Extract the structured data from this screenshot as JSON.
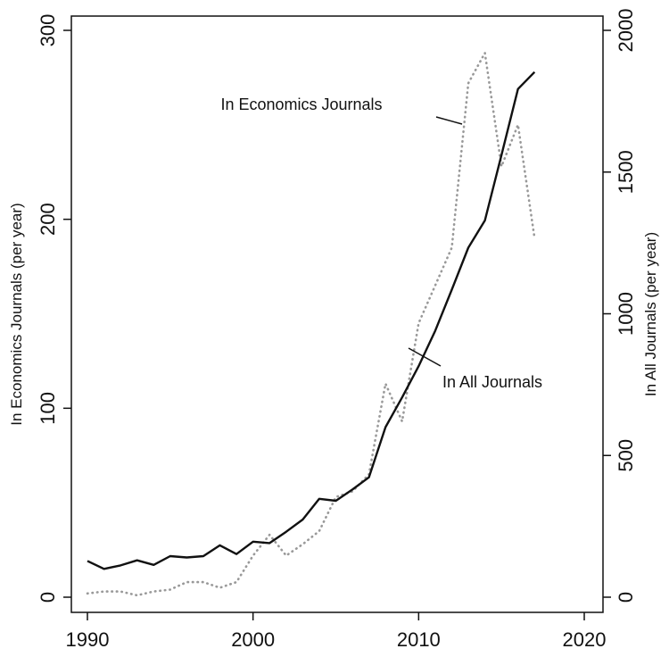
{
  "chart_data": {
    "type": "line",
    "x_axis": {
      "range": [
        1990,
        2020
      ],
      "ticks": [
        1990,
        2000,
        2010,
        2020
      ],
      "tick_labels": [
        "1990",
        "2000",
        "2010",
        "2020"
      ]
    },
    "y_left": {
      "label": "In Economics Journals (per year)",
      "range": [
        0,
        300
      ],
      "ticks": [
        0,
        100,
        200,
        300
      ],
      "tick_labels": [
        "0",
        "100",
        "200",
        "300"
      ]
    },
    "y_right": {
      "label": "In All Journals (per year)",
      "range": [
        0,
        2000
      ],
      "ticks": [
        0,
        500,
        1000,
        1500,
        2000
      ],
      "tick_labels": [
        "0",
        "500",
        "1000",
        "1500",
        "2000"
      ]
    },
    "series": [
      {
        "name": "In Economics Journals",
        "axis": "left",
        "style": "dotted",
        "color": "#999999",
        "x": [
          1990,
          1991,
          1992,
          1993,
          1994,
          1995,
          1996,
          1997,
          1998,
          1999,
          2000,
          2001,
          2002,
          2003,
          2004,
          2005,
          2006,
          2007,
          2008,
          2009,
          2010,
          2011,
          2012,
          2013,
          2014,
          2015,
          2016,
          2017
        ],
        "y": [
          2,
          3,
          3,
          1,
          3,
          4,
          8,
          8,
          5,
          8,
          22,
          33,
          22,
          28,
          35,
          53,
          56,
          65,
          113,
          93,
          145,
          165,
          185,
          272,
          288,
          228,
          250,
          190
        ]
      },
      {
        "name": "In All Journals",
        "axis": "right",
        "style": "solid",
        "color": "#111111",
        "x": [
          1990,
          1991,
          1992,
          1993,
          1994,
          1995,
          1996,
          1997,
          1998,
          1999,
          2000,
          2001,
          2002,
          2003,
          2004,
          2005,
          2006,
          2007,
          2008,
          2009,
          2010,
          2011,
          2012,
          2013,
          2014,
          2015,
          2016,
          2017
        ],
        "y": [
          128,
          100,
          112,
          130,
          114,
          145,
          140,
          145,
          183,
          152,
          196,
          191,
          231,
          274,
          347,
          340,
          380,
          423,
          600,
          705,
          815,
          940,
          1085,
          1233,
          1329,
          1560,
          1793,
          1853
        ]
      }
    ],
    "annotations": [
      {
        "text": "In Economics Journals",
        "points_to": "In Economics Journals"
      },
      {
        "text": "In All Journals",
        "points_to": "In All Journals"
      }
    ],
    "grid": false,
    "legend": "none (direct labels)"
  }
}
